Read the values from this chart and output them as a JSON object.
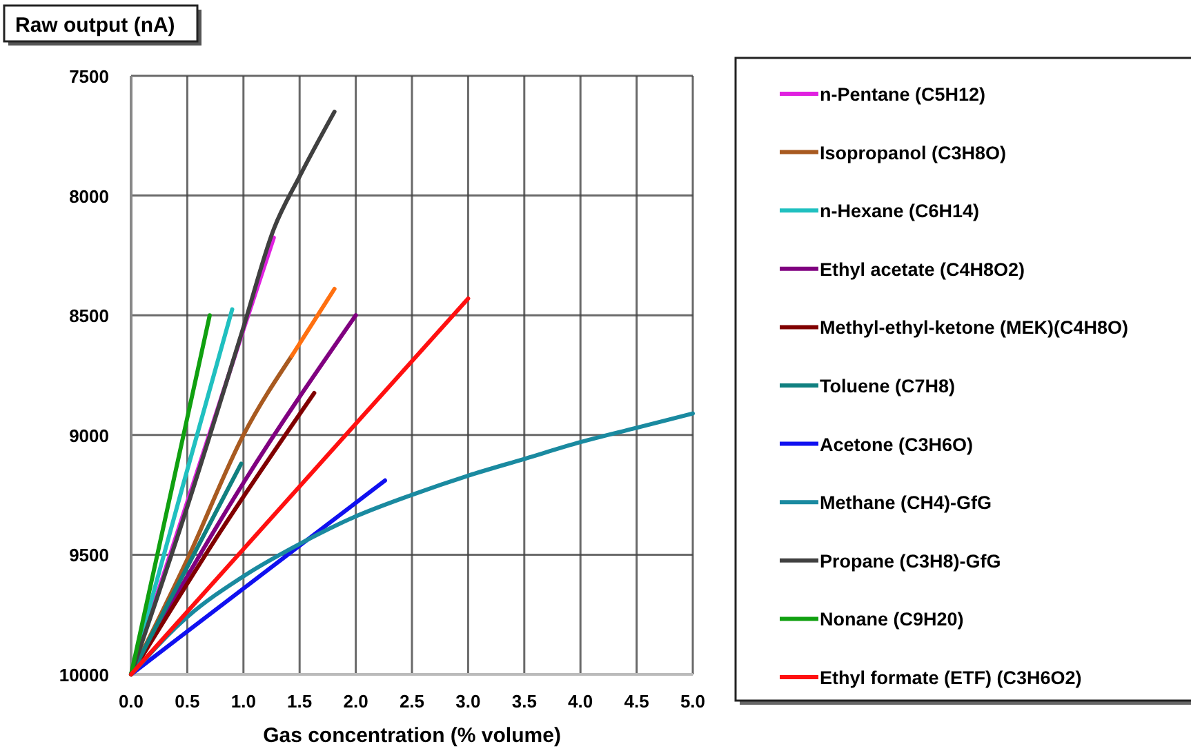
{
  "chart_data": {
    "type": "line",
    "ylabel": "Raw output (nA)",
    "xlabel": "Gas concentration (% volume)",
    "xlim": [
      0,
      5
    ],
    "ylim": [
      10000,
      7500
    ],
    "xticks": [
      {
        "value": 0,
        "label": "0.0"
      },
      {
        "value": 0.5,
        "label": "0.5"
      },
      {
        "value": 1,
        "label": "1.0"
      },
      {
        "value": 1.5,
        "label": "1.5"
      },
      {
        "value": 2,
        "label": "2.0"
      },
      {
        "value": 2.5,
        "label": "2.5"
      },
      {
        "value": 3,
        "label": "3.0"
      },
      {
        "value": 3.5,
        "label": "3.5"
      },
      {
        "value": 4,
        "label": "4.0"
      },
      {
        "value": 4.5,
        "label": "4.5"
      },
      {
        "value": 5,
        "label": "5.0"
      }
    ],
    "yticks": [
      7500,
      8000,
      8500,
      9000,
      9500,
      10000
    ],
    "grid": true,
    "legend": "right",
    "marker": "none",
    "line_style": "solid",
    "series": [
      {
        "name": "n-Pentane (C5H12)",
        "color": "#e020e0",
        "x": [
          0,
          0.5,
          1,
          1.27
        ],
        "values": [
          10000,
          9280,
          8560,
          8176
        ]
      },
      {
        "name": "Isopropanol (C3H8O)",
        "color": "#a85a20",
        "x": [
          0,
          0.5,
          1,
          1.43
        ],
        "values": [
          10000,
          9520,
          9000,
          8670
        ]
      },
      {
        "name": "n-Hexane (C6H14)",
        "color": "#20c0c0",
        "x": [
          0,
          0.45,
          0.9
        ],
        "values": [
          10000,
          9230,
          8475
        ]
      },
      {
        "name": "Ethyl acetate (C4H8O2)",
        "color": "#800080",
        "x": [
          0,
          1,
          2
        ],
        "values": [
          10000,
          9200,
          8500
        ]
      },
      {
        "name": "Methyl-ethyl-ketone (MEK)(C4H8O)",
        "color": "#800000",
        "x": [
          0,
          0.8,
          1.63
        ],
        "values": [
          10000,
          9400,
          8825
        ]
      },
      {
        "name": "Toluene (C7H8)",
        "color": "#108080",
        "x": [
          0,
          0.98
        ],
        "values": [
          10000,
          9120
        ]
      },
      {
        "name": "Acetone (C3H6O)",
        "color": "#1010f0",
        "x": [
          0,
          2.26
        ],
        "values": [
          10000,
          9190
        ]
      },
      {
        "name": "Methane (CH4)-GfG",
        "color": "#1a8aa0",
        "x": [
          0,
          0.5,
          1,
          1.5,
          2,
          2.5,
          3,
          3.5,
          4,
          4.5,
          5
        ],
        "values": [
          10000,
          9760,
          9590,
          9455,
          9340,
          9250,
          9170,
          9100,
          9030,
          8970,
          8910
        ]
      },
      {
        "name": "Propane (C3H8)-GfG",
        "color": "#404040",
        "x": [
          0,
          0.5,
          1,
          1.27,
          1.5,
          1.81
        ],
        "values": [
          10000,
          9300,
          8550,
          8140,
          7920,
          7650
        ]
      },
      {
        "name": "Nonane (C9H20)",
        "color": "#10a010",
        "x": [
          0,
          0.7
        ],
        "values": [
          10000,
          8500
        ]
      },
      {
        "name": "Ethyl formate (ETF) (C3H6O2)",
        "color": "#ff1010",
        "x": [
          0,
          3
        ],
        "values": [
          10000,
          8430
        ]
      },
      {
        "color": "#ff7010",
        "x": [
          1.43,
          1.81
        ],
        "values": [
          8670,
          8390
        ]
      }
    ]
  }
}
